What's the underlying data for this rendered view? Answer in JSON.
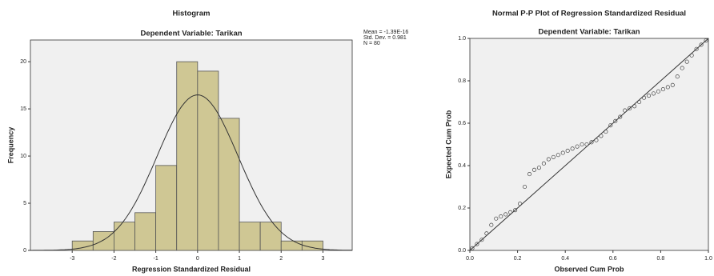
{
  "chart_data": [
    {
      "type": "histogram",
      "title": "Histogram",
      "subtitle": "Dependent Variable: Tarikan",
      "x_label": "Regression Standardized Residual",
      "y_label": "Frequency",
      "stats": [
        "Mean = -1.39E-16",
        "Std. Dev. = 0.981",
        "N = 80"
      ],
      "bins": [
        -3,
        -2.5,
        -2,
        -1.5,
        -1,
        -0.5,
        0,
        0.5,
        1,
        1.5,
        2,
        2.5,
        3
      ],
      "values": [
        1,
        2,
        3,
        4,
        9,
        20,
        19,
        14,
        3,
        3,
        1,
        1
      ],
      "color": "#cfc794",
      "xlim": [
        -4,
        3.7
      ],
      "xticks": [
        -3,
        -2,
        -1,
        0,
        1,
        2,
        3
      ],
      "ylim": [
        0,
        22.3
      ],
      "yticks": [
        0,
        5,
        10,
        15,
        20
      ]
    },
    {
      "type": "scatter",
      "title": "Normal P-P Plot of Regression Standardized Residual",
      "subtitle": "Dependent Variable: Tarikan",
      "x_label": "Observed Cum Prob",
      "y_label": "Expected Cum Prob",
      "x": [
        0.01,
        0.03,
        0.05,
        0.07,
        0.09,
        0.11,
        0.13,
        0.15,
        0.17,
        0.19,
        0.21,
        0.23,
        0.25,
        0.27,
        0.29,
        0.31,
        0.33,
        0.35,
        0.37,
        0.39,
        0.41,
        0.43,
        0.45,
        0.47,
        0.49,
        0.51,
        0.53,
        0.55,
        0.57,
        0.59,
        0.61,
        0.63,
        0.65,
        0.67,
        0.69,
        0.71,
        0.73,
        0.75,
        0.77,
        0.79,
        0.81,
        0.83,
        0.85,
        0.87,
        0.89,
        0.91,
        0.93,
        0.95,
        0.97,
        0.99
      ],
      "values": [
        0.01,
        0.03,
        0.05,
        0.08,
        0.12,
        0.15,
        0.16,
        0.17,
        0.18,
        0.19,
        0.22,
        0.3,
        0.36,
        0.38,
        0.39,
        0.41,
        0.43,
        0.44,
        0.45,
        0.46,
        0.47,
        0.48,
        0.49,
        0.5,
        0.5,
        0.51,
        0.52,
        0.54,
        0.56,
        0.59,
        0.61,
        0.63,
        0.66,
        0.67,
        0.68,
        0.7,
        0.72,
        0.73,
        0.74,
        0.75,
        0.76,
        0.77,
        0.78,
        0.82,
        0.86,
        0.89,
        0.92,
        0.95,
        0.97,
        0.99
      ],
      "xlim": [
        0,
        1
      ],
      "ylim": [
        0,
        1
      ],
      "xticks": [
        {
          "value": 0,
          "label": "0.0"
        },
        {
          "value": 0.2,
          "label": "0.2"
        },
        {
          "value": 0.4,
          "label": "0.4"
        },
        {
          "value": 0.6,
          "label": "0.6"
        },
        {
          "value": 0.8,
          "label": "0.8"
        },
        {
          "value": 1,
          "label": "1.0"
        }
      ],
      "yticks": [
        {
          "value": 0,
          "label": "0.0"
        },
        {
          "value": 0.2,
          "label": "0.2"
        },
        {
          "value": 0.4,
          "label": "0.4"
        },
        {
          "value": 0.6,
          "label": "0.6"
        },
        {
          "value": 0.8,
          "label": "0.8"
        },
        {
          "value": 1,
          "label": "1.0"
        }
      ]
    }
  ]
}
